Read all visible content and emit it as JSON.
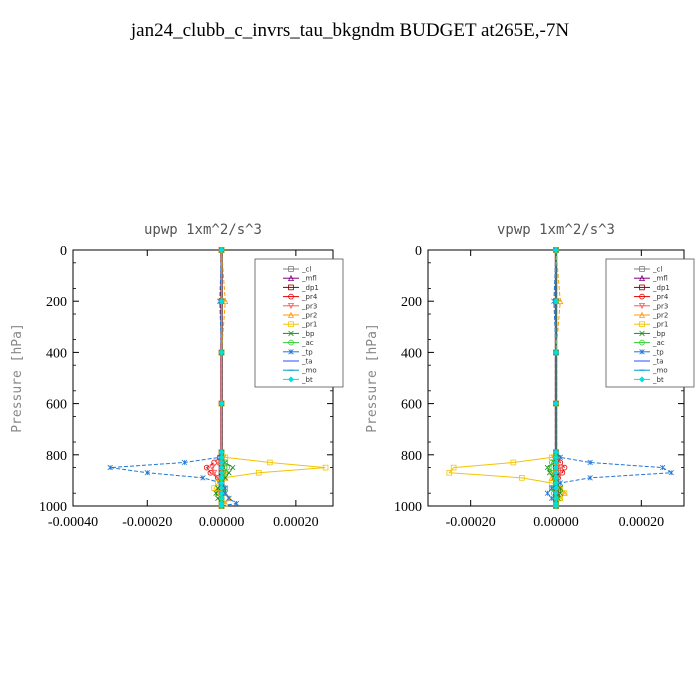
{
  "title": "jan24_clubb_c_invrs_tau_bkgndm  BUDGET at265E,-7N",
  "chart_data": [
    {
      "type": "line",
      "title": "upwp   1xm^2/s^3",
      "ylabel": "Pressure [hPa]",
      "xlabel": "",
      "ylim": [
        1000,
        0
      ],
      "xlim": [
        -0.0004,
        0.0003
      ],
      "yticks": [
        0,
        200,
        400,
        600,
        800,
        1000
      ],
      "xticks": [
        -0.0004,
        -0.0002,
        0.0,
        0.0002
      ],
      "xtick_labels": [
        "-0.00040",
        "-0.00020",
        "0.00000",
        "0.00020"
      ],
      "legend_position": "top-right",
      "pressure_levels": [
        0,
        200,
        400,
        600,
        790,
        810,
        830,
        850,
        870,
        890,
        910,
        930,
        950,
        970,
        990,
        1000
      ],
      "series": [
        {
          "name": "_cl",
          "color": "#7f7f7f",
          "values": [
            0,
            0,
            0,
            0,
            0,
            0,
            0,
            0,
            0,
            0,
            0,
            0,
            0,
            0,
            0,
            0
          ]
        },
        {
          "name": "_mfl",
          "color": "#800080",
          "values": [
            0,
            0,
            0,
            0,
            0,
            0,
            0,
            0,
            0,
            0,
            0,
            0,
            0,
            0,
            0,
            0
          ]
        },
        {
          "name": "_dp1",
          "color": "#8b0000",
          "values": [
            0,
            0,
            0,
            0,
            0,
            0,
            0,
            0,
            0,
            0,
            0,
            0,
            0,
            0,
            0,
            0
          ]
        },
        {
          "name": "_pr4",
          "color": "#e60000",
          "values": [
            0,
            0,
            0,
            0,
            0,
            -5e-06,
            -2e-05,
            -4e-05,
            -3e-05,
            -1e-05,
            0,
            0,
            0,
            0,
            0,
            0
          ]
        },
        {
          "name": "_pr3",
          "color": "#ff5555",
          "values": [
            0,
            0,
            0,
            0,
            0,
            5e-06,
            -1e-05,
            -2.5e-05,
            -2e-05,
            -1e-05,
            0,
            0,
            0,
            0,
            0,
            0
          ]
        },
        {
          "name": "_pr2",
          "color": "#ff9900",
          "values": [
            0,
            1e-05,
            0,
            0,
            0,
            0,
            0,
            0,
            1e-05,
            1e-05,
            0,
            -5e-06,
            1e-05,
            2e-05,
            1e-05,
            0
          ]
        },
        {
          "name": "_pr1",
          "color": "#f2c500",
          "values": [
            0,
            0,
            0,
            0,
            0,
            1e-05,
            0.00013,
            0.00028,
            0.0001,
            5e-06,
            -1e-05,
            -2e-05,
            -1e-05,
            0,
            0,
            0
          ]
        },
        {
          "name": "_bp",
          "color": "#1a8c1a",
          "values": [
            0,
            0,
            0,
            0,
            0,
            0,
            1e-05,
            3e-05,
            2e-05,
            1e-05,
            0,
            -1e-05,
            -1.5e-05,
            -1e-05,
            0,
            0
          ]
        },
        {
          "name": "_ac",
          "color": "#33cc33",
          "values": [
            0,
            0,
            0,
            0,
            0,
            0,
            1e-05,
            1.5e-05,
            1e-05,
            0,
            0,
            1e-05,
            5e-06,
            0,
            0,
            0
          ]
        },
        {
          "name": "_tp",
          "color": "#1f77d4",
          "values": [
            0,
            -5e-06,
            0,
            0,
            0,
            -5e-06,
            -0.0001,
            -0.0003,
            -0.0002,
            -5e-05,
            0,
            1e-05,
            1e-05,
            2e-05,
            4e-05,
            0
          ]
        },
        {
          "name": "_ta",
          "color": "#2a4cff",
          "values": [
            0,
            0,
            0,
            0,
            0,
            0,
            0,
            0,
            0,
            0,
            0,
            0,
            0,
            0,
            0,
            0
          ]
        },
        {
          "name": "_mo",
          "color": "#0099cc",
          "values": [
            0,
            0,
            0,
            0,
            0,
            0,
            0,
            0,
            0,
            0,
            0,
            0,
            0,
            0,
            0,
            0
          ]
        },
        {
          "name": "_bt",
          "color": "#00e0e0",
          "values": [
            0,
            0,
            0,
            0,
            0,
            0,
            0,
            0,
            0,
            0,
            0,
            0,
            0,
            0,
            0,
            0
          ]
        }
      ]
    },
    {
      "type": "line",
      "title": "vpwp   1xm^2/s^3",
      "ylabel": "Pressure [hPa]",
      "xlabel": "",
      "ylim": [
        1000,
        0
      ],
      "xlim": [
        -0.0003,
        0.0003
      ],
      "yticks": [
        0,
        200,
        400,
        600,
        800,
        1000
      ],
      "xticks": [
        -0.0002,
        0.0,
        0.0002
      ],
      "xtick_labels": [
        "-0.00020",
        "0.00000",
        "0.00020"
      ],
      "legend_position": "top-right",
      "pressure_levels": [
        0,
        200,
        400,
        600,
        790,
        810,
        830,
        850,
        870,
        890,
        910,
        930,
        950,
        970,
        990,
        1000
      ],
      "series": [
        {
          "name": "_cl",
          "color": "#7f7f7f",
          "values": [
            0,
            0,
            0,
            0,
            0,
            0,
            0,
            0,
            0,
            0,
            0,
            0,
            0,
            0,
            0,
            0
          ]
        },
        {
          "name": "_mfl",
          "color": "#800080",
          "values": [
            0,
            0,
            0,
            0,
            0,
            0,
            0,
            0,
            0,
            0,
            0,
            0,
            0,
            0,
            0,
            0
          ]
        },
        {
          "name": "_dp1",
          "color": "#8b0000",
          "values": [
            0,
            0,
            0,
            0,
            0,
            0,
            0,
            0,
            0,
            0,
            0,
            0,
            0,
            0,
            0,
            0
          ]
        },
        {
          "name": "_pr4",
          "color": "#e60000",
          "values": [
            0,
            0,
            0,
            0,
            0,
            5e-06,
            1e-05,
            2e-05,
            1.5e-05,
            5e-06,
            0,
            0,
            0,
            0,
            0,
            0
          ]
        },
        {
          "name": "_pr3",
          "color": "#ff5555",
          "values": [
            0,
            0,
            0,
            0,
            0,
            -5e-06,
            5e-06,
            1e-05,
            1e-05,
            5e-06,
            0,
            0,
            0,
            0,
            0,
            0
          ]
        },
        {
          "name": "_pr2",
          "color": "#ff9900",
          "values": [
            0,
            1e-05,
            0,
            0,
            0,
            0,
            0,
            0,
            -5e-06,
            -1e-05,
            0,
            1e-05,
            2e-05,
            1e-05,
            0,
            0
          ]
        },
        {
          "name": "_pr1",
          "color": "#f2c500",
          "values": [
            0,
            0,
            0,
            0,
            0,
            -1e-05,
            -0.0001,
            -0.00024,
            -0.00025,
            -8e-05,
            -1e-05,
            1e-05,
            2e-05,
            1e-05,
            0,
            0
          ]
        },
        {
          "name": "_bp",
          "color": "#1a8c1a",
          "values": [
            0,
            0,
            0,
            0,
            0,
            0,
            -5e-06,
            -2e-05,
            -1.5e-05,
            -5e-06,
            0,
            1e-05,
            1e-05,
            5e-06,
            0,
            0
          ]
        },
        {
          "name": "_ac",
          "color": "#33cc33",
          "values": [
            0,
            0,
            0,
            0,
            0,
            0,
            -1e-05,
            -1.5e-05,
            -1e-05,
            0,
            0,
            -1e-05,
            -5e-06,
            0,
            0,
            0
          ]
        },
        {
          "name": "_tp",
          "color": "#1f77d4",
          "values": [
            0,
            -5e-06,
            0,
            0,
            0,
            1e-05,
            8e-05,
            0.00025,
            0.00027,
            8e-05,
            1e-05,
            -1e-05,
            -2e-05,
            -1e-05,
            0,
            0
          ]
        },
        {
          "name": "_ta",
          "color": "#2a4cff",
          "values": [
            0,
            0,
            0,
            0,
            0,
            0,
            0,
            0,
            0,
            0,
            0,
            0,
            0,
            0,
            0,
            0
          ]
        },
        {
          "name": "_mo",
          "color": "#0099cc",
          "values": [
            0,
            0,
            0,
            0,
            0,
            0,
            0,
            0,
            0,
            0,
            0,
            0,
            0,
            0,
            0,
            0
          ]
        },
        {
          "name": "_bt",
          "color": "#00e0e0",
          "values": [
            0,
            0,
            0,
            0,
            0,
            0,
            0,
            0,
            0,
            0,
            0,
            0,
            0,
            0,
            0,
            0
          ]
        }
      ]
    }
  ]
}
